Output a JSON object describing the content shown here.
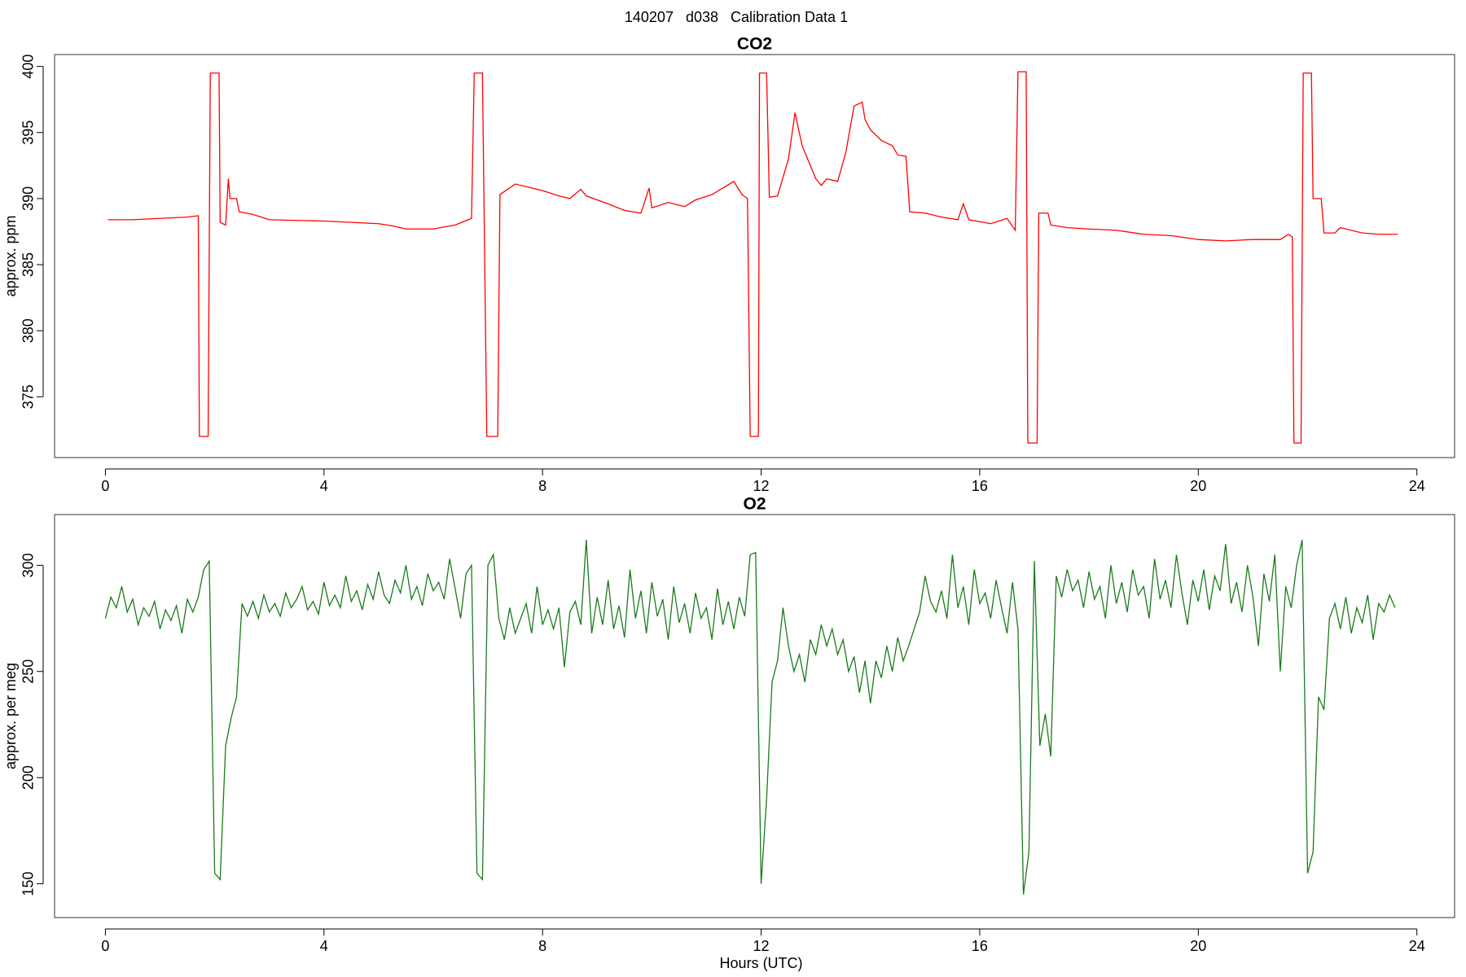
{
  "title": "140207   d038   Calibration Data 1",
  "chart_data": [
    {
      "type": "line",
      "title": "CO2",
      "ylabel": "approx. ppm",
      "xlim": [
        -0.93,
        24.69
      ],
      "xticks": [
        0,
        4,
        8,
        12,
        16,
        20,
        24
      ],
      "ylim": [
        370.4,
        400.9
      ],
      "yticks": [
        375,
        380,
        385,
        390,
        395,
        400
      ],
      "x": [
        0.05,
        0.5,
        1.0,
        1.5,
        1.7,
        1.72,
        1.88,
        1.92,
        2.08,
        2.1,
        2.2,
        2.25,
        2.28,
        2.4,
        2.45,
        2.7,
        3.0,
        4.0,
        5.0,
        5.3,
        5.5,
        6.0,
        6.4,
        6.7,
        6.75,
        6.9,
        6.98,
        7.18,
        7.22,
        7.5,
        8.0,
        8.3,
        8.5,
        8.7,
        8.8,
        9.2,
        9.5,
        9.8,
        9.95,
        10.0,
        10.3,
        10.6,
        10.8,
        11.1,
        11.5,
        11.65,
        11.75,
        11.8,
        11.95,
        11.97,
        12.1,
        12.15,
        12.3,
        12.5,
        12.62,
        12.75,
        13.0,
        13.1,
        13.2,
        13.4,
        13.55,
        13.7,
        13.85,
        13.9,
        14.0,
        14.2,
        14.4,
        14.5,
        14.65,
        14.72,
        15.0,
        15.3,
        15.6,
        15.7,
        15.8,
        16.2,
        16.5,
        16.65,
        16.7,
        16.85,
        16.88,
        17.05,
        17.08,
        17.25,
        17.3,
        17.6,
        18.0,
        18.5,
        19.0,
        19.5,
        20.0,
        20.5,
        21.0,
        21.5,
        21.65,
        21.72,
        21.75,
        21.88,
        21.92,
        22.07,
        22.1,
        22.25,
        22.3,
        22.5,
        22.6,
        23.0,
        23.3,
        23.65
      ],
      "series": [
        {
          "name": "CO2",
          "color": "#ff0000",
          "values": [
            388.4,
            388.4,
            388.5,
            388.6,
            388.7,
            372,
            372,
            399.5,
            399.5,
            388.2,
            388.0,
            391.5,
            390,
            390,
            389,
            388.8,
            388.4,
            388.3,
            388.1,
            387.9,
            387.7,
            387.7,
            388.0,
            388.5,
            399.5,
            399.5,
            372,
            372,
            390.3,
            391.1,
            390.6,
            390.2,
            390.0,
            390.7,
            390.2,
            389.6,
            389.1,
            388.9,
            390.8,
            389.3,
            389.7,
            389.4,
            389.9,
            390.3,
            391.3,
            390.3,
            390,
            372,
            372,
            399.5,
            399.5,
            390.1,
            390.2,
            393,
            396.5,
            394,
            391.5,
            391,
            391.5,
            391.3,
            393.5,
            397,
            397.3,
            396,
            395.2,
            394.4,
            394.0,
            393.3,
            393.2,
            389,
            388.9,
            388.6,
            388.4,
            389.6,
            388.4,
            388.1,
            388.5,
            387.6,
            399.6,
            399.6,
            371.5,
            371.5,
            388.9,
            388.9,
            388.0,
            387.8,
            387.7,
            387.6,
            387.3,
            387.2,
            386.9,
            386.8,
            386.9,
            386.9,
            387.3,
            387.1,
            371.5,
            371.5,
            399.5,
            399.5,
            390,
            390,
            387.4,
            387.4,
            387.8,
            387.4,
            387.3,
            387.3
          ]
        }
      ]
    },
    {
      "type": "line",
      "title": "O2",
      "ylabel": "approx. per meg",
      "xlabel": "Hours (UTC)",
      "xlim": [
        -0.93,
        24.69
      ],
      "xticks": [
        0,
        4,
        8,
        12,
        16,
        20,
        24
      ],
      "ylim": [
        134.1,
        323.9
      ],
      "yticks": [
        150,
        200,
        250,
        300
      ],
      "x": [
        0,
        0.1,
        0.2,
        0.3,
        0.4,
        0.5,
        0.6,
        0.7,
        0.8,
        0.9,
        1,
        1.1,
        1.2,
        1.3,
        1.4,
        1.5,
        1.6,
        1.7,
        1.8,
        1.9,
        2,
        2.1,
        2.2,
        2.3,
        2.4,
        2.5,
        2.6,
        2.7,
        2.8,
        2.9,
        3,
        3.1,
        3.2,
        3.3,
        3.4,
        3.5,
        3.6,
        3.7,
        3.8,
        3.9,
        4,
        4.1,
        4.2,
        4.3,
        4.4,
        4.5,
        4.6,
        4.7,
        4.8,
        4.9,
        5,
        5.1,
        5.2,
        5.3,
        5.4,
        5.5,
        5.6,
        5.7,
        5.8,
        5.9,
        6,
        6.1,
        6.2,
        6.3,
        6.4,
        6.5,
        6.6,
        6.7,
        6.8,
        6.9,
        7,
        7.1,
        7.2,
        7.3,
        7.4,
        7.5,
        7.6,
        7.7,
        7.8,
        7.9,
        8,
        8.1,
        8.2,
        8.3,
        8.4,
        8.5,
        8.6,
        8.7,
        8.8,
        8.9,
        9,
        9.1,
        9.2,
        9.3,
        9.4,
        9.5,
        9.6,
        9.7,
        9.8,
        9.9,
        10,
        10.1,
        10.2,
        10.3,
        10.4,
        10.5,
        10.6,
        10.7,
        10.8,
        10.9,
        11,
        11.1,
        11.2,
        11.3,
        11.4,
        11.5,
        11.6,
        11.7,
        11.8,
        11.9,
        12,
        12.1,
        12.2,
        12.3,
        12.4,
        12.5,
        12.6,
        12.7,
        12.8,
        12.9,
        13,
        13.1,
        13.2,
        13.3,
        13.4,
        13.5,
        13.6,
        13.7,
        13.8,
        13.9,
        14,
        14.1,
        14.2,
        14.3,
        14.4,
        14.5,
        14.6,
        14.7,
        14.8,
        14.9,
        15,
        15.1,
        15.2,
        15.3,
        15.4,
        15.5,
        15.6,
        15.7,
        15.8,
        15.9,
        16,
        16.1,
        16.2,
        16.3,
        16.4,
        16.5,
        16.6,
        16.7,
        16.8,
        16.9,
        17,
        17.1,
        17.2,
        17.3,
        17.4,
        17.5,
        17.6,
        17.7,
        17.8,
        17.9,
        18,
        18.1,
        18.2,
        18.3,
        18.4,
        18.5,
        18.6,
        18.7,
        18.8,
        18.9,
        19,
        19.1,
        19.2,
        19.3,
        19.4,
        19.5,
        19.6,
        19.7,
        19.8,
        19.9,
        20,
        20.1,
        20.2,
        20.3,
        20.4,
        20.5,
        20.6,
        20.7,
        20.8,
        20.9,
        21,
        21.1,
        21.2,
        21.3,
        21.4,
        21.5,
        21.6,
        21.7,
        21.8,
        21.9,
        22,
        22.1,
        22.2,
        22.3,
        22.4,
        22.5,
        22.6,
        22.7,
        22.8,
        22.9,
        23,
        23.1,
        23.2,
        23.3,
        23.4,
        23.5,
        23.6
      ],
      "series": [
        {
          "name": "O2",
          "color": "#1a7a1a",
          "values": [
            275,
            285,
            280,
            290,
            278,
            284,
            272,
            280,
            276,
            283,
            270,
            279,
            274,
            281,
            268,
            284,
            278,
            285,
            298,
            302,
            155,
            152,
            215,
            228,
            238,
            282,
            276,
            283,
            275,
            286,
            278,
            282,
            276,
            287,
            280,
            284,
            290,
            279,
            283,
            277,
            292,
            281,
            286,
            280,
            295,
            283,
            288,
            279,
            291,
            284,
            297,
            286,
            282,
            293,
            287,
            300,
            284,
            290,
            281,
            296,
            288,
            292,
            284,
            303,
            289,
            275,
            296,
            300,
            155,
            152,
            300,
            305,
            275,
            265,
            280,
            268,
            275,
            282,
            268,
            290,
            272,
            279,
            270,
            280,
            252,
            278,
            283,
            272,
            312,
            268,
            285,
            272,
            293,
            270,
            281,
            266,
            298,
            275,
            288,
            268,
            292,
            276,
            284,
            265,
            290,
            273,
            282,
            268,
            287,
            275,
            280,
            265,
            289,
            272,
            283,
            270,
            285,
            276,
            305,
            306,
            150,
            190,
            245,
            255,
            280,
            262,
            250,
            258,
            245,
            265,
            258,
            272,
            262,
            270,
            258,
            265,
            250,
            257,
            240,
            255,
            235,
            255,
            247,
            262,
            250,
            266,
            255,
            262,
            270,
            278,
            295,
            283,
            278,
            288,
            275,
            305,
            280,
            290,
            272,
            298,
            282,
            287,
            275,
            293,
            280,
            268,
            292,
            270,
            145,
            165,
            302,
            215,
            230,
            210,
            295,
            285,
            298,
            288,
            293,
            280,
            297,
            284,
            290,
            275,
            300,
            282,
            292,
            278,
            298,
            286,
            290,
            275,
            303,
            284,
            293,
            280,
            305,
            287,
            272,
            293,
            283,
            298,
            279,
            295,
            288,
            310,
            282,
            292,
            278,
            300,
            285,
            262,
            296,
            283,
            305,
            250,
            290,
            280,
            300,
            312,
            155,
            165,
            238,
            232,
            275,
            282,
            270,
            285,
            268,
            280,
            273,
            286,
            265,
            282,
            278,
            286,
            280
          ]
        }
      ]
    }
  ]
}
